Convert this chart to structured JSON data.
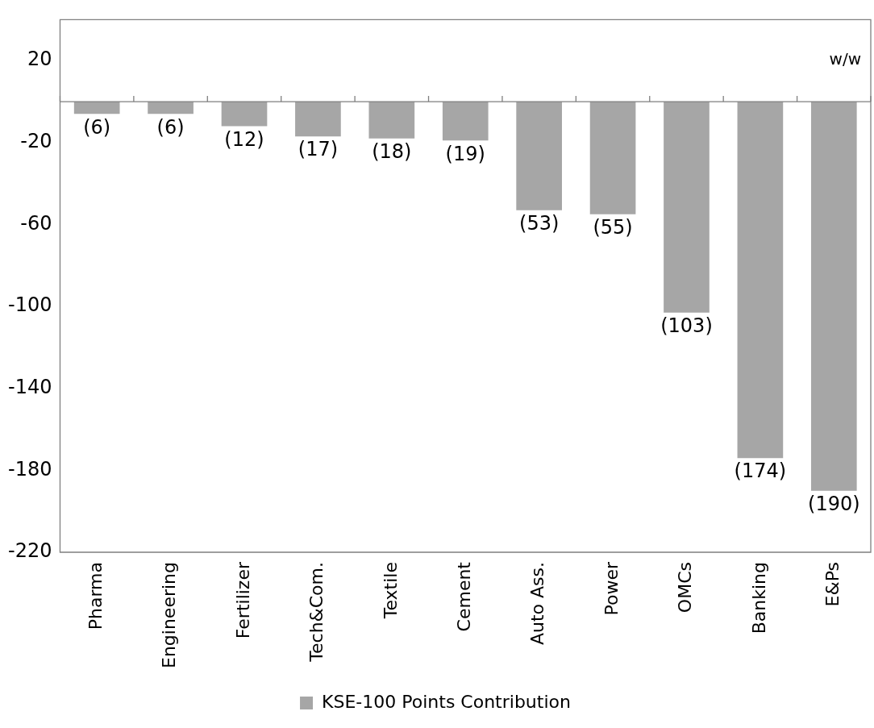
{
  "chart_data": {
    "type": "bar",
    "categories": [
      "Pharma",
      "Engineering",
      "Fertilizer",
      "Tech&Com.",
      "Textile",
      "Cement",
      "Auto Ass.",
      "Power",
      "OMCs",
      "Banking",
      "E&Ps"
    ],
    "series": [
      {
        "name": "KSE-100 Points Contribution",
        "color": "#a6a6a6",
        "values": [
          -6,
          -6,
          -12,
          -17,
          -18,
          -19,
          -53,
          -55,
          -103,
          -174,
          -190
        ],
        "value_labels": [
          "(6)",
          "(6)",
          "(12)",
          "(17)",
          "(18)",
          "(19)",
          "(53)",
          "(55)",
          "(103)",
          "(174)",
          "(190)"
        ]
      }
    ],
    "ylim": [
      -220,
      40
    ],
    "yticks": [
      20,
      -20,
      -60,
      -100,
      -140,
      -180,
      -220
    ],
    "annotations": [
      "w/w"
    ],
    "grid": false,
    "legend": "bottom"
  }
}
